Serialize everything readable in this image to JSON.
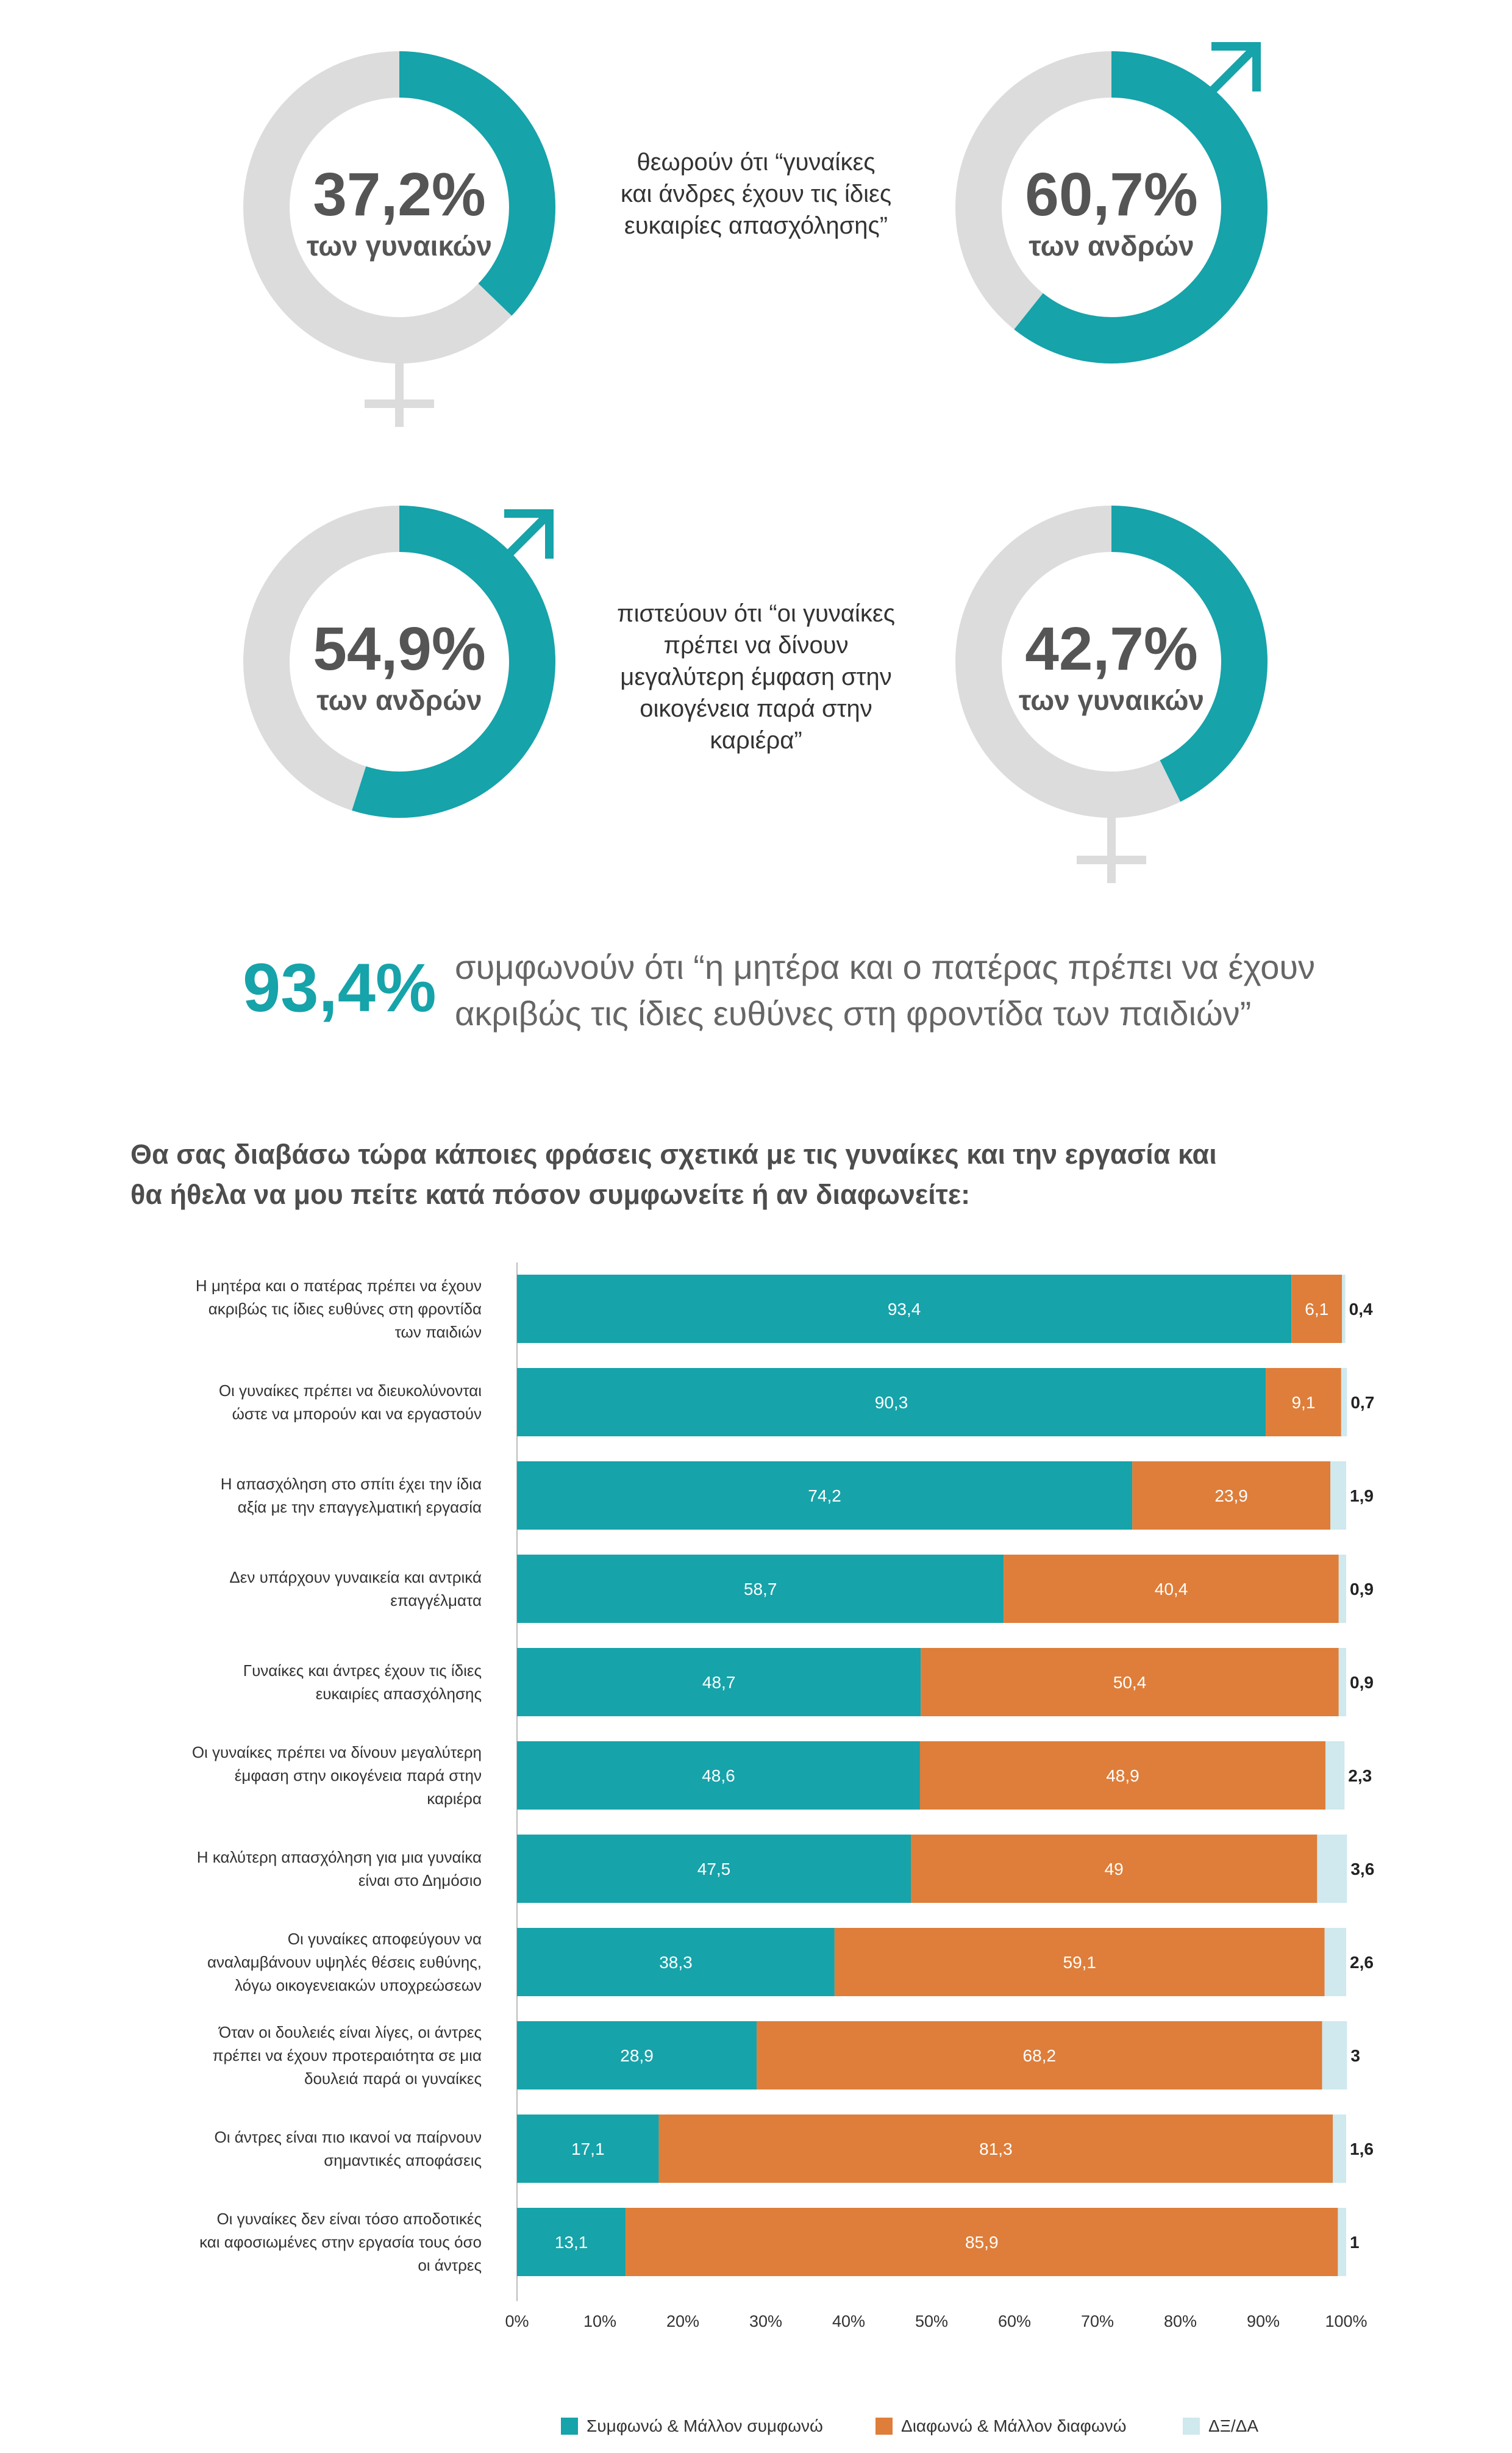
{
  "infographic": {
    "quote1": [
      "θεωρούν ότι “γυναίκες",
      "και άνδρες έχουν τις ίδιες",
      "ευκαιρίες απασχόλησης”"
    ],
    "quote2": [
      "πιστεύουν ότι “οι γυναίκες",
      "πρέπει να δίνουν",
      "μεγαλύτερη έμφαση στην",
      "οικογένεια παρά στην",
      "καριέρα”"
    ],
    "donuts": [
      {
        "pct": "37,2%",
        "who": "των γυναικών",
        "value": 37.2,
        "symbol": "female-icon"
      },
      {
        "pct": "60,7%",
        "who": "των ανδρών",
        "value": 60.7,
        "symbol": "male-icon"
      },
      {
        "pct": "54,9%",
        "who": "των ανδρών",
        "value": 54.9,
        "symbol": "male-icon"
      },
      {
        "pct": "42,7%",
        "who": "των γυναικών",
        "value": 42.7,
        "symbol": "female-icon"
      }
    ],
    "big_stat": "93,4%",
    "big_text": [
      "συμφωνούν ότι “η μητέρα και ο πατέρας πρέπει να έχουν",
      "ακριβώς τις ίδιες ευθύνες στη φροντίδα των παιδιών”"
    ],
    "question": [
      "Θα σας διαβάσω τώρα κάποιες φράσεις σχετικά με τις γυναίκες και την εργασία και",
      "θα ήθελα να μου πείτε κατά πόσον συμφωνείτε ή αν διαφωνείτε:"
    ]
  },
  "colors": {
    "teal": "#16a3aa",
    "orange": "#de7e3a",
    "light": "#cfe9ee",
    "grey": "#dcdcdc"
  },
  "chart_data": {
    "type": "bar",
    "orientation": "horizontal-stacked",
    "categories": [
      [
        "Η μητέρα και ο πατέρας πρέπει να έχουν",
        "ακριβώς τις ίδιες ευθύνες στη φροντίδα",
        "των παιδιών"
      ],
      [
        "Οι γυναίκες πρέπει να διευκολύνονται",
        "ώστε να μπορούν και να εργαστούν"
      ],
      [
        "Η απασχόληση στο σπίτι έχει την ίδια",
        "αξία με την επαγγελματική εργασία"
      ],
      [
        "Δεν υπάρχουν γυναικεία και αντρικά",
        "επαγγέλματα"
      ],
      [
        "Γυναίκες και άντρες έχουν τις ίδιες",
        "ευκαιρίες απασχόλησης"
      ],
      [
        "Οι γυναίκες πρέπει να δίνουν μεγαλύτερη",
        "έμφαση στην οικογένεια παρά στην",
        "καριέρα"
      ],
      [
        "Η καλύτερη απασχόληση για μια γυναίκα",
        "είναι στο Δημόσιο"
      ],
      [
        "Οι γυναίκες αποφεύγουν να",
        "αναλαμβάνουν υψηλές θέσεις ευθύνης,",
        "λόγω οικογενειακών υποχρεώσεων"
      ],
      [
        "Όταν οι δουλειές είναι λίγες, οι άντρες",
        "πρέπει να έχουν προτεραιότητα σε μια",
        "δουλειά παρά οι γυναίκες"
      ],
      [
        "Οι άντρες είναι πιο ικανοί να παίρνουν",
        "σημαντικές αποφάσεις"
      ],
      [
        "Οι γυναίκες δεν είναι τόσο αποδοτικές",
        "και αφοσιωμένες στην εργασία τους όσο",
        "οι άντρες"
      ]
    ],
    "series": [
      {
        "name": "Συμφωνώ & Μάλλον συμφωνώ",
        "color": "#16a3aa",
        "values": [
          93.4,
          90.3,
          74.2,
          58.7,
          48.7,
          48.6,
          47.5,
          38.3,
          28.9,
          17.1,
          13.1
        ],
        "labels": [
          "93,4",
          "90,3",
          "74,2",
          "58,7",
          "48,7",
          "48,6",
          "47,5",
          "38,3",
          "28,9",
          "17,1",
          "13,1"
        ]
      },
      {
        "name": "Διαφωνώ & Μάλλον διαφωνώ",
        "color": "#de7e3a",
        "values": [
          6.1,
          9.1,
          23.9,
          40.4,
          50.4,
          48.9,
          49,
          59.1,
          68.2,
          81.3,
          85.9
        ],
        "labels": [
          "6,1",
          "9,1",
          "23,9",
          "40,4",
          "50,4",
          "48,9",
          "49",
          "59,1",
          "68,2",
          "81,3",
          "85,9"
        ]
      },
      {
        "name": "ΔΞ/ΔΑ",
        "color": "#cfe9ee",
        "values": [
          0.4,
          0.7,
          1.9,
          0.9,
          0.9,
          2.3,
          3.6,
          2.6,
          3,
          1.6,
          1
        ],
        "labels": [
          "0,4",
          "0,7",
          "1,9",
          "0,9",
          "0,9",
          "2,3",
          "3,6",
          "2,6",
          "3",
          "1,6",
          "1"
        ]
      }
    ],
    "xticks": [
      "0%",
      "10%",
      "20%",
      "30%",
      "40%",
      "50%",
      "60%",
      "70%",
      "80%",
      "90%",
      "100%"
    ],
    "xlim": [
      0,
      100
    ],
    "grid": false,
    "legend_position": "bottom"
  }
}
